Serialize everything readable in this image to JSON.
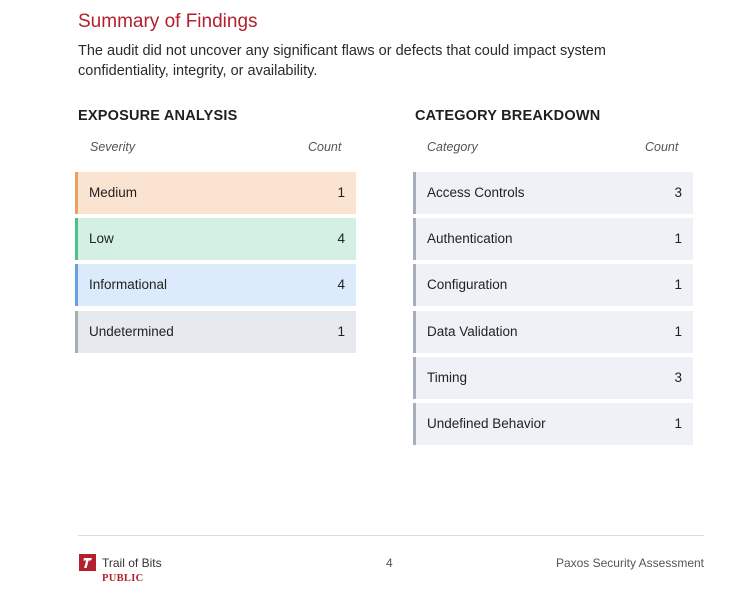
{
  "summary": {
    "title": "Summary of Findings",
    "intro": "The audit did not uncover any significant flaws or defects that could impact system confidentiality, integrity, or availability."
  },
  "exposure_analysis": {
    "heading": "EXPOSURE ANALYSIS",
    "col_label": "Severity",
    "col_count": "Count",
    "rows": [
      {
        "label": "Medium",
        "count": "1",
        "bg": "#fbe3d2",
        "accent": "#e9a063"
      },
      {
        "label": "Low",
        "count": "4",
        "bg": "#d3f0e3",
        "accent": "#4fc08d"
      },
      {
        "label": "Informational",
        "count": "4",
        "bg": "#dcebfb",
        "accent": "#6b9de0"
      },
      {
        "label": "Undetermined",
        "count": "1",
        "bg": "#e6e9ee",
        "accent": "#a7aeb8"
      }
    ]
  },
  "category_breakdown": {
    "heading": "CATEGORY BREAKDOWN",
    "col_label": "Category",
    "col_count": "Count",
    "rows": [
      {
        "label": "Access Controls",
        "count": "3"
      },
      {
        "label": "Authentication",
        "count": "1"
      },
      {
        "label": "Configuration",
        "count": "1"
      },
      {
        "label": "Data Validation",
        "count": "1"
      },
      {
        "label": "Timing",
        "count": "3"
      },
      {
        "label": "Undefined Behavior",
        "count": "1"
      }
    ],
    "row_bg": "#eef1f5",
    "row_accent": "#a7aeb8"
  },
  "footer": {
    "logo_icon": "trail-of-bits-logo",
    "brand": "Trail of Bits",
    "classification": "PUBLIC",
    "page_number": "4",
    "document_title": "Paxos Security Assessment"
  }
}
